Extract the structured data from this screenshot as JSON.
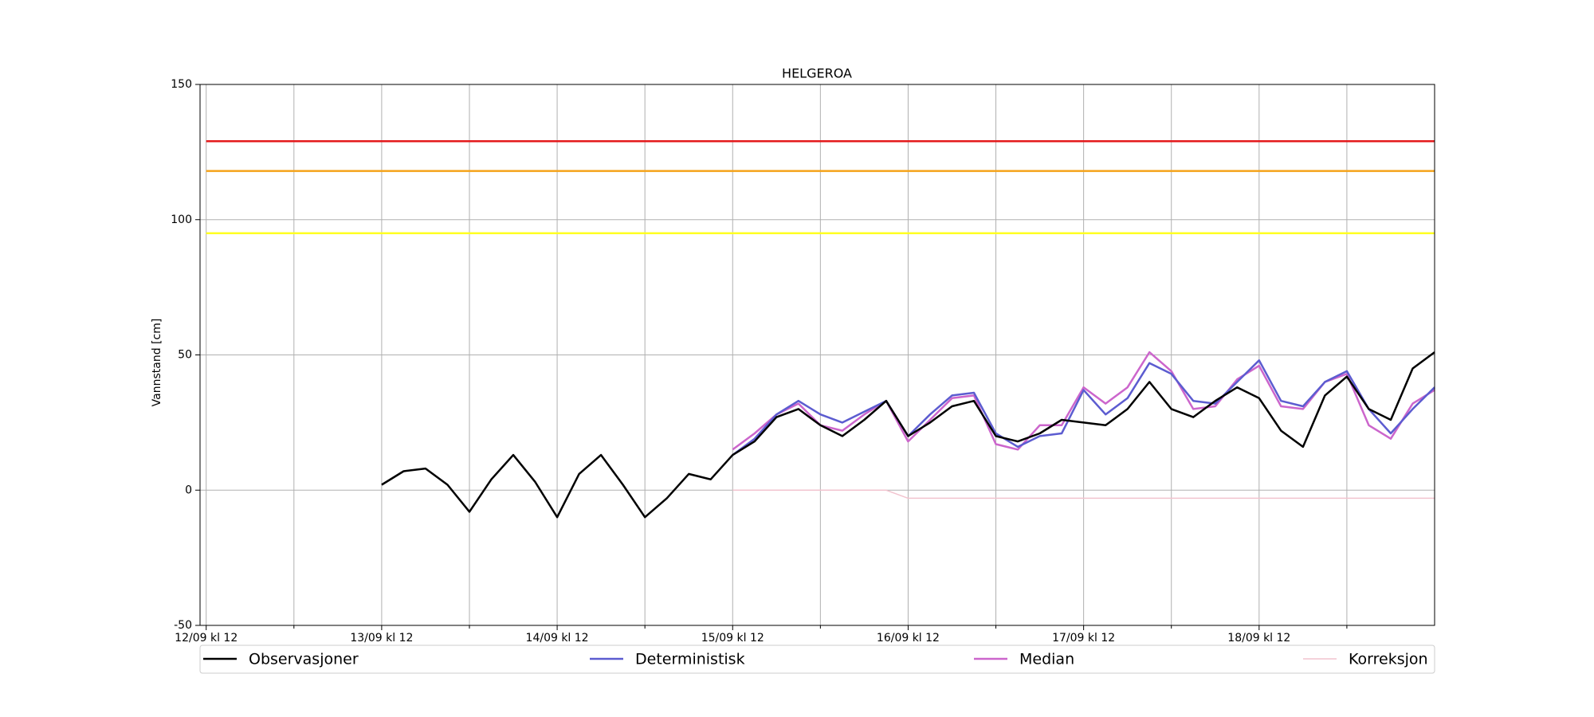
{
  "chart_data": {
    "type": "line",
    "title": "HELGEROA",
    "y_label": "Vannstand [cm]",
    "xlim": [
      -0.035,
      7.0
    ],
    "xticks": [
      {
        "value": 0,
        "label": "12/09 kl 12"
      },
      {
        "value": 1,
        "label": "13/09 kl 12"
      },
      {
        "value": 2,
        "label": "14/09 kl 12"
      },
      {
        "value": 3,
        "label": "15/09 kl 12"
      },
      {
        "value": 4,
        "label": "16/09 kl 12"
      },
      {
        "value": 5,
        "label": "17/09 kl 12"
      },
      {
        "value": 6,
        "label": "18/09 kl 12"
      }
    ],
    "xminorticks": [
      0.5,
      1.5,
      2.5,
      3.5,
      4.5,
      5.5,
      6.5
    ],
    "ylim": [
      -50,
      150
    ],
    "yticks": [
      -50,
      0,
      50,
      100,
      150
    ],
    "grid": true,
    "thresholds": [
      {
        "value": 129,
        "color": "#e41a1c"
      },
      {
        "value": 118,
        "color": "#f5a31a"
      },
      {
        "value": 95,
        "color": "#ffff22"
      }
    ],
    "x": [
      1.0,
      1.125,
      1.25,
      1.375,
      1.5,
      1.625,
      1.75,
      1.875,
      2.0,
      2.125,
      2.25,
      2.375,
      2.5,
      2.625,
      2.75,
      2.875,
      3.0,
      3.125,
      3.25,
      3.375,
      3.5,
      3.625,
      3.75,
      3.875,
      4.0,
      4.125,
      4.25,
      4.375,
      4.5,
      4.625,
      4.75,
      4.875,
      5.0,
      5.125,
      5.25,
      5.375,
      5.5,
      5.625,
      5.75,
      5.875,
      6.0,
      6.125,
      6.25,
      6.375,
      6.5,
      6.625,
      6.75,
      6.875,
      7.0
    ],
    "series": [
      {
        "name": "Observasjoner",
        "color": "#000000",
        "values": [
          2,
          7,
          8,
          2,
          -8,
          4,
          13,
          3,
          -10,
          6,
          13,
          2,
          -10,
          -3,
          6,
          4,
          13,
          18,
          27,
          30,
          24,
          20,
          26,
          33,
          20,
          25,
          31,
          33,
          20,
          18,
          21,
          26,
          25,
          24,
          30,
          40,
          30,
          27,
          33,
          38,
          34,
          22,
          16,
          35,
          42,
          30,
          26,
          45,
          51
        ]
      },
      {
        "name": "Deterministisk",
        "color": "#5c5cd0",
        "values": [
          null,
          null,
          null,
          null,
          null,
          null,
          null,
          null,
          null,
          null,
          null,
          null,
          null,
          null,
          null,
          null,
          13,
          19,
          28,
          33,
          28,
          25,
          29,
          33,
          20,
          28,
          35,
          36,
          21,
          16,
          20,
          21,
          37,
          28,
          34,
          47,
          43,
          33,
          32,
          40,
          48,
          33,
          31,
          40,
          44,
          30,
          21,
          30,
          38
        ]
      },
      {
        "name": "Median",
        "color": "#cc66cc",
        "values": [
          null,
          null,
          null,
          null,
          null,
          null,
          null,
          null,
          null,
          null,
          null,
          null,
          null,
          null,
          null,
          null,
          15,
          21,
          28,
          32,
          24,
          22,
          28,
          33,
          18,
          26,
          34,
          35,
          17,
          15,
          24,
          24,
          38,
          32,
          38,
          51,
          44,
          30,
          31,
          41,
          46,
          31,
          30,
          40,
          43,
          24,
          19,
          32,
          37
        ]
      },
      {
        "name": "Korreksjon",
        "color": "#f2c4cf",
        "values": [
          null,
          null,
          null,
          null,
          null,
          null,
          null,
          null,
          null,
          null,
          null,
          null,
          null,
          null,
          null,
          null,
          0,
          0,
          0,
          0,
          0,
          0,
          0,
          0,
          -3,
          -3,
          -3,
          -3,
          -3,
          -3,
          -3,
          -3,
          -3,
          -3,
          -3,
          -3,
          -3,
          -3,
          -3,
          -3,
          -3,
          -3,
          -3,
          -3,
          -3,
          -3,
          -3,
          -3,
          -3
        ]
      }
    ]
  }
}
